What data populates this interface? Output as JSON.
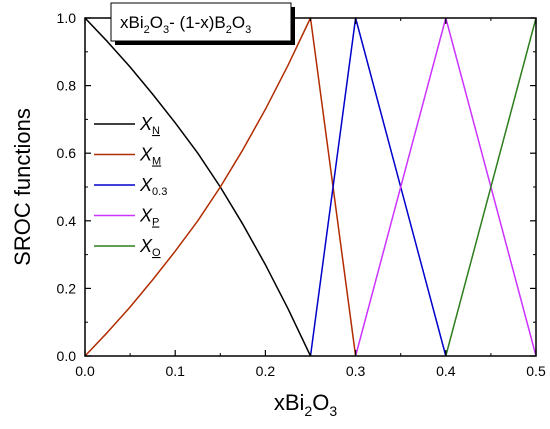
{
  "chart_data": {
    "type": "line",
    "title": {
      "main": "xBi",
      "s1": "2",
      "mid1": "O",
      "s2": "3",
      "mid2": "- (1-x)B",
      "s3": "2",
      "mid3": "O",
      "s4": "3"
    },
    "xlabel": {
      "main": "xBi",
      "s1": "2",
      "mid": "O",
      "s2": "3"
    },
    "ylabel": "SROC functions",
    "xlim": [
      0,
      0.5
    ],
    "ylim": [
      0,
      1
    ],
    "xticks": [
      "0.0",
      "0.1",
      "0.2",
      "0.3",
      "0.4",
      "0.5"
    ],
    "yticks": [
      "0.0",
      "0.2",
      "0.4",
      "0.6",
      "0.8",
      "1.0"
    ],
    "grid": false,
    "legend_position": "left",
    "series": [
      {
        "name": "X",
        "sub": "N",
        "underline": true,
        "color": "#000000",
        "x": [
          0,
          0.025,
          0.05,
          0.075,
          0.1,
          0.125,
          0.15,
          0.175,
          0.2,
          0.225,
          0.25
        ],
        "y": [
          1.0,
          0.93,
          0.855,
          0.775,
          0.69,
          0.6,
          0.5,
          0.39,
          0.27,
          0.14,
          0.0
        ]
      },
      {
        "name": "X",
        "sub": "M",
        "underline": true,
        "color": "#b22c00",
        "x": [
          0,
          0.025,
          0.05,
          0.075,
          0.1,
          0.125,
          0.15,
          0.175,
          0.2,
          0.225,
          0.25,
          0.3
        ],
        "y": [
          0.0,
          0.07,
          0.145,
          0.225,
          0.31,
          0.4,
          0.5,
          0.61,
          0.73,
          0.86,
          1.0,
          0.0
        ]
      },
      {
        "name": "X",
        "sub": "0.3",
        "underline": false,
        "color": "#0000cc",
        "x": [
          0.25,
          0.3,
          0.4
        ],
        "y": [
          0.0,
          1.0,
          0.0
        ]
      },
      {
        "name": "X",
        "sub": "P",
        "underline": true,
        "color": "#cc33ff",
        "x": [
          0.3,
          0.4,
          0.5
        ],
        "y": [
          0.0,
          1.0,
          0.0
        ]
      },
      {
        "name": "X",
        "sub": "O",
        "underline": true,
        "color": "#2e7d1e",
        "x": [
          0.4,
          0.5
        ],
        "y": [
          0.0,
          1.0
        ]
      }
    ]
  }
}
